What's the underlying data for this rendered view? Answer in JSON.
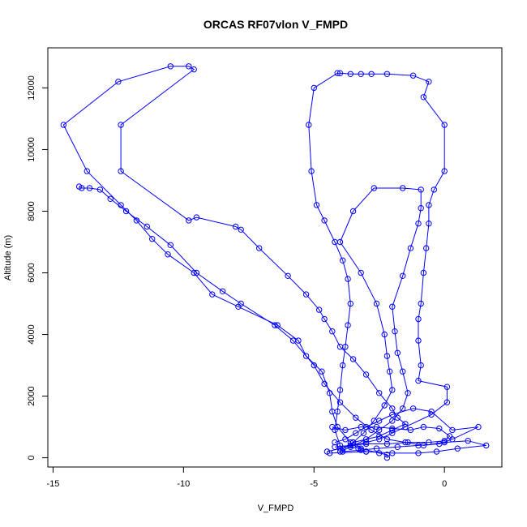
{
  "chart_data": {
    "type": "line",
    "title": "ORCAS RF07vlon V_FMPD",
    "xlabel": "V_FMPD",
    "ylabel": "Altitude (m)",
    "xlim": [
      -15.2,
      2.2
    ],
    "ylim": [
      -300,
      13300
    ],
    "xticks": [
      -15,
      -10,
      -5,
      0
    ],
    "yticks": [
      0,
      2000,
      4000,
      6000,
      8000,
      10000,
      12000
    ],
    "grid": false,
    "legend": "none",
    "marker": "open-circle",
    "color": "#0000ff",
    "series": [
      {
        "points": [
          [
            -2.2,
            0
          ],
          [
            -2.2,
            100
          ],
          [
            -2.5,
            150
          ],
          [
            -3.2,
            300
          ],
          [
            -3.5,
            500
          ],
          [
            -2.5,
            700
          ],
          [
            -2.0,
            900
          ],
          [
            -1.5,
            1100
          ],
          [
            -1.8,
            1300
          ],
          [
            -2.0,
            1600
          ],
          [
            -2.5,
            2100
          ],
          [
            -3.0,
            2700
          ],
          [
            -3.5,
            3200
          ],
          [
            -4.0,
            3600
          ],
          [
            -4.3,
            4100
          ],
          [
            -4.6,
            4500
          ],
          [
            -4.8,
            4800
          ],
          [
            -5.3,
            5300
          ],
          [
            -6.0,
            5900
          ],
          [
            -7.1,
            6800
          ],
          [
            -7.8,
            7400
          ],
          [
            -8.0,
            7500
          ],
          [
            -9.5,
            7800
          ],
          [
            -9.8,
            7700
          ],
          [
            -12.4,
            9300
          ],
          [
            -12.4,
            10800
          ],
          [
            -9.6,
            12600
          ],
          [
            -9.8,
            12700
          ],
          [
            -10.5,
            12700
          ],
          [
            -12.5,
            12200
          ],
          [
            -14.6,
            10800
          ],
          [
            -13.7,
            9300
          ],
          [
            -12.4,
            8200
          ],
          [
            -11.8,
            7700
          ],
          [
            -11.2,
            7100
          ],
          [
            -10.6,
            6600
          ],
          [
            -9.6,
            6000
          ],
          [
            -8.9,
            5300
          ],
          [
            -7.9,
            4900
          ],
          [
            -6.4,
            4300
          ],
          [
            -5.6,
            3800
          ],
          [
            -5.3,
            3300
          ],
          [
            -4.7,
            2800
          ],
          [
            -4.4,
            2100
          ],
          [
            -4.3,
            1500
          ],
          [
            -4.1,
            1000
          ],
          [
            -3.6,
            500
          ],
          [
            -3.3,
            300
          ],
          [
            -3.0,
            200
          ]
        ]
      },
      {
        "points": [
          [
            -4.5,
            200
          ],
          [
            -4.0,
            300
          ],
          [
            -3.5,
            400
          ],
          [
            -3.0,
            500
          ],
          [
            -2.5,
            600
          ],
          [
            -2.0,
            800
          ],
          [
            -1.5,
            1000
          ],
          [
            -0.5,
            1400
          ],
          [
            0.1,
            1800
          ],
          [
            0.1,
            2300
          ],
          [
            -1.0,
            2500
          ],
          [
            -0.9,
            3000
          ],
          [
            -1.0,
            3800
          ],
          [
            -1.0,
            4500
          ],
          [
            -0.9,
            5000
          ],
          [
            -0.8,
            6000
          ],
          [
            -0.7,
            6800
          ],
          [
            -0.6,
            7600
          ],
          [
            -0.6,
            8200
          ],
          [
            -0.4,
            8700
          ],
          [
            0.0,
            9300
          ],
          [
            0.0,
            10800
          ],
          [
            -0.8,
            11700
          ],
          [
            -0.6,
            12200
          ],
          [
            -1.2,
            12400
          ],
          [
            -2.2,
            12450
          ],
          [
            -2.8,
            12450
          ],
          [
            -3.2,
            12450
          ],
          [
            -3.6,
            12450
          ],
          [
            -4.0,
            12480
          ],
          [
            -4.1,
            12480
          ],
          [
            -5.0,
            12000
          ],
          [
            -5.2,
            10800
          ],
          [
            -5.1,
            9300
          ],
          [
            -4.9,
            8200
          ],
          [
            -4.6,
            7700
          ],
          [
            -4.2,
            7000
          ],
          [
            -3.9,
            6400
          ],
          [
            -3.7,
            5800
          ],
          [
            -3.6,
            5000
          ],
          [
            -3.7,
            4300
          ],
          [
            -3.8,
            3600
          ],
          [
            -3.9,
            3000
          ],
          [
            -4.0,
            2200
          ],
          [
            -4.1,
            1500
          ],
          [
            -4.2,
            900
          ],
          [
            -4.0,
            400
          ]
        ]
      },
      {
        "points": [
          [
            -4.0,
            200
          ],
          [
            -3.6,
            350
          ],
          [
            -3.0,
            600
          ],
          [
            -2.5,
            900
          ],
          [
            -2.0,
            1200
          ],
          [
            -1.6,
            1600
          ],
          [
            -1.4,
            2100
          ],
          [
            -1.6,
            2800
          ],
          [
            -1.8,
            3400
          ],
          [
            -1.9,
            4100
          ],
          [
            -2.0,
            4900
          ],
          [
            -1.6,
            5900
          ],
          [
            -1.3,
            6800
          ],
          [
            -1.0,
            7600
          ],
          [
            -0.9,
            8100
          ],
          [
            -0.9,
            8700
          ],
          [
            -1.6,
            8750
          ],
          [
            -2.7,
            8750
          ],
          [
            -3.5,
            8000
          ],
          [
            -4.0,
            7000
          ],
          [
            -3.2,
            6000
          ],
          [
            -2.6,
            5000
          ],
          [
            -2.3,
            4000
          ],
          [
            -2.2,
            3300
          ],
          [
            -2.1,
            2800
          ],
          [
            -2.0,
            2200
          ],
          [
            -2.3,
            1700
          ],
          [
            -2.7,
            1200
          ],
          [
            -3.1,
            800
          ],
          [
            -3.5,
            500
          ],
          [
            -3.9,
            300
          ]
        ]
      },
      {
        "points": [
          [
            -14.0,
            8800
          ],
          [
            -13.9,
            8750
          ],
          [
            -13.6,
            8750
          ],
          [
            -13.2,
            8700
          ],
          [
            -12.8,
            8400
          ],
          [
            -12.2,
            8000
          ],
          [
            -11.4,
            7500
          ],
          [
            -10.5,
            6900
          ],
          [
            -9.5,
            6000
          ],
          [
            -8.5,
            5400
          ],
          [
            -7.8,
            5000
          ],
          [
            -6.5,
            4300
          ],
          [
            -5.8,
            3800
          ],
          [
            -5.0,
            3000
          ],
          [
            -4.6,
            2400
          ],
          [
            -4.0,
            1800
          ],
          [
            -3.4,
            1300
          ],
          [
            -2.8,
            900
          ],
          [
            -2.2,
            600
          ],
          [
            -1.5,
            500
          ],
          [
            -0.8,
            400
          ],
          [
            0.0,
            500
          ],
          [
            0.9,
            550
          ],
          [
            1.6,
            400
          ],
          [
            0.5,
            300
          ],
          [
            -0.3,
            200
          ],
          [
            -1.0,
            150
          ],
          [
            -2.0,
            150
          ],
          [
            -3.0,
            200
          ],
          [
            -4.4,
            150
          ]
        ]
      },
      {
        "points": [
          [
            -4.2,
            500
          ],
          [
            -3.8,
            600
          ],
          [
            -3.4,
            800
          ],
          [
            -3.0,
            1000
          ],
          [
            -2.5,
            1200
          ],
          [
            -2.0,
            1400
          ],
          [
            -1.2,
            1600
          ],
          [
            -0.5,
            1500
          ],
          [
            0.3,
            900
          ],
          [
            1.3,
            1000
          ],
          [
            0.3,
            600
          ],
          [
            -0.2,
            450
          ],
          [
            -1.0,
            400
          ],
          [
            -1.8,
            350
          ],
          [
            -2.6,
            300
          ],
          [
            -3.2,
            250
          ],
          [
            -3.9,
            200
          ]
        ]
      },
      {
        "points": [
          [
            -4.3,
            1000
          ],
          [
            -3.8,
            900
          ],
          [
            -3.2,
            1000
          ],
          [
            -2.6,
            1000
          ],
          [
            -2.0,
            950
          ],
          [
            -1.3,
            900
          ],
          [
            -0.8,
            1000
          ],
          [
            -0.2,
            950
          ],
          [
            0.2,
            700
          ],
          [
            0.0,
            550
          ],
          [
            -0.6,
            500
          ],
          [
            -1.4,
            500
          ],
          [
            -2.2,
            450
          ],
          [
            -3.0,
            450
          ],
          [
            -3.6,
            400
          ],
          [
            -4.2,
            350
          ]
        ]
      }
    ]
  }
}
